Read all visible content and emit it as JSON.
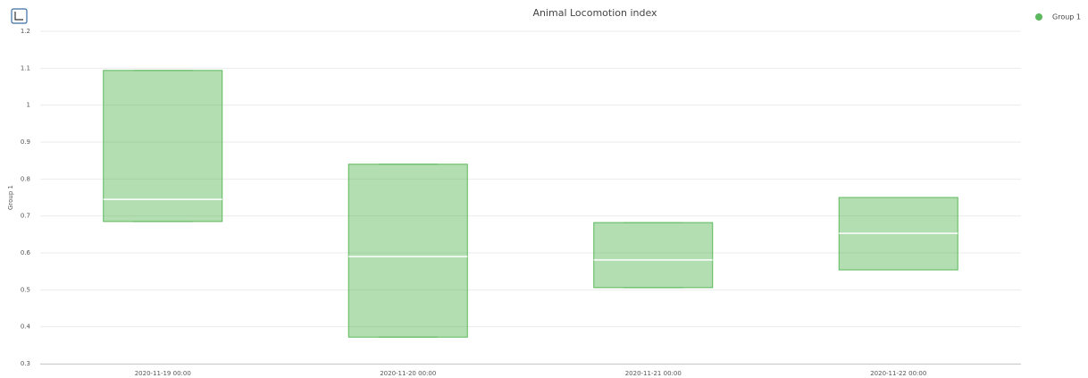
{
  "chart_data": {
    "type": "box",
    "title": "Animal Locomotion index",
    "y_label": "Group 1",
    "categories": [
      "2020-11-19 00:00",
      "2020-11-20 00:00",
      "2020-11-21 00:00",
      "2020-11-22 00:00"
    ],
    "series": [
      {
        "name": "Group 1",
        "color": "#5cb85c",
        "low": [
          0.685,
          0.372,
          0.506,
          0.554
        ],
        "q1": [
          0.685,
          0.372,
          0.506,
          0.554
        ],
        "median": [
          0.745,
          0.59,
          0.581,
          0.653
        ],
        "q3": [
          1.094,
          0.84,
          0.682,
          0.75
        ],
        "high": [
          1.094,
          0.84,
          0.682,
          0.75
        ]
      }
    ],
    "ylim": [
      0.3,
      1.2
    ],
    "yticks": [
      0.3,
      0.4,
      0.5,
      0.6,
      0.7,
      0.8,
      0.9,
      1,
      1.1,
      1.2
    ],
    "grid": true,
    "legend": "top-right"
  }
}
